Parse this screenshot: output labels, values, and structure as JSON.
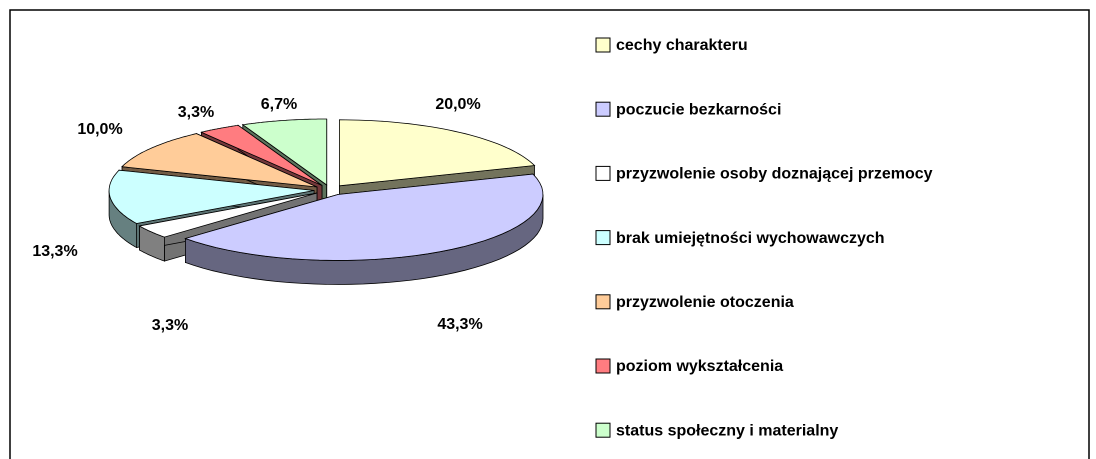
{
  "chart_data": {
    "type": "pie",
    "categories": [
      "cechy charakteru",
      "poczucie bezkarności",
      "przyzwolenie osoby doznającej przemocy",
      "brak umiejętności wychowawczych",
      "przyzwolenie otoczenia",
      "poziom wykształcenia",
      "status społeczny i materialny"
    ],
    "values": [
      20.0,
      43.3,
      3.3,
      13.3,
      10.0,
      3.3,
      6.7
    ],
    "value_labels": [
      "20,0%",
      "43,3%",
      "3,3%",
      "13,3%",
      "10,0%",
      "3,3%",
      "6,7%"
    ],
    "colors": [
      "#ffffcc",
      "#ccccff",
      "#ffffff",
      "#ccffff",
      "#ffcc99",
      "#ff7c80",
      "#ccffcc"
    ],
    "legend": "right"
  }
}
